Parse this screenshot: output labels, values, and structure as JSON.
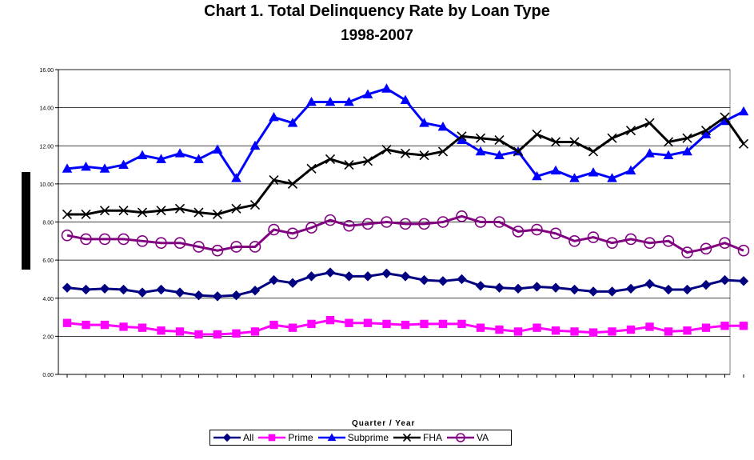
{
  "title": "Chart 1. Total Delinquency Rate by Loan Type",
  "subtitle": "1998-2007",
  "chart_data": {
    "type": "line",
    "title": "Chart 1. Total Delinquency Rate by Loan Type",
    "subtitle": "1998-2007",
    "xlabel": "Quarter / Year",
    "ylabel": "",
    "ylim": [
      0,
      16
    ],
    "yticks": [
      "0.00",
      "2.00",
      "4.00",
      "6.00",
      "8.00",
      "10.00",
      "12.00",
      "14.00",
      "16.00"
    ],
    "grid": true,
    "legend_position": "bottom",
    "series": [
      {
        "name": "All",
        "color": "#000080",
        "marker": "diamond",
        "values": [
          4.55,
          4.45,
          4.5,
          4.45,
          4.3,
          4.45,
          4.3,
          4.15,
          4.1,
          4.15,
          4.4,
          4.95,
          4.8,
          5.15,
          5.35,
          5.15,
          5.15,
          5.3,
          5.15,
          4.95,
          4.9,
          5.0,
          4.65,
          4.55,
          4.5,
          4.6,
          4.55,
          4.45,
          4.35,
          4.35,
          4.5,
          4.75,
          4.45,
          4.45,
          4.7,
          4.95,
          4.9
        ]
      },
      {
        "name": "Prime",
        "color": "#ff00ff",
        "marker": "square",
        "values": [
          2.7,
          2.6,
          2.6,
          2.5,
          2.45,
          2.3,
          2.25,
          2.1,
          2.1,
          2.15,
          2.25,
          2.6,
          2.45,
          2.65,
          2.85,
          2.7,
          2.7,
          2.65,
          2.6,
          2.65,
          2.65,
          2.65,
          2.45,
          2.35,
          2.25,
          2.45,
          2.3,
          2.25,
          2.2,
          2.25,
          2.35,
          2.5,
          2.25,
          2.3,
          2.45,
          2.55,
          2.55
        ]
      },
      {
        "name": "Subprime",
        "color": "#0000ff",
        "marker": "triangle",
        "values": [
          10.8,
          10.9,
          10.8,
          11.0,
          11.5,
          11.3,
          11.6,
          11.3,
          11.8,
          10.3,
          12.0,
          13.5,
          13.2,
          14.3,
          14.3,
          14.3,
          14.7,
          15.0,
          14.4,
          13.2,
          13.0,
          12.3,
          11.7,
          11.5,
          11.7,
          10.4,
          10.7,
          10.3,
          10.6,
          10.3,
          10.7,
          11.6,
          11.5,
          11.7,
          12.6,
          13.3,
          13.8
        ]
      },
      {
        "name": "FHA",
        "color": "#000000",
        "marker": "x",
        "values": [
          8.4,
          8.4,
          8.6,
          8.6,
          8.5,
          8.6,
          8.7,
          8.5,
          8.4,
          8.7,
          8.9,
          10.2,
          10.0,
          10.8,
          11.3,
          11.0,
          11.2,
          11.8,
          11.6,
          11.5,
          11.7,
          12.5,
          12.4,
          12.3,
          11.7,
          12.6,
          12.2,
          12.2,
          11.7,
          12.4,
          12.8,
          13.2,
          12.2,
          12.4,
          12.8,
          13.5,
          12.1
        ]
      },
      {
        "name": "VA",
        "color": "#800080",
        "marker": "circle",
        "values": [
          7.3,
          7.1,
          7.1,
          7.1,
          7.0,
          6.9,
          6.9,
          6.7,
          6.5,
          6.7,
          6.7,
          7.6,
          7.4,
          7.7,
          8.1,
          7.8,
          7.9,
          8.0,
          7.9,
          7.9,
          8.0,
          8.3,
          8.0,
          8.0,
          7.5,
          7.6,
          7.4,
          7.0,
          7.2,
          6.9,
          7.1,
          6.9,
          7.0,
          6.4,
          6.6,
          6.9,
          6.5
        ]
      }
    ]
  }
}
